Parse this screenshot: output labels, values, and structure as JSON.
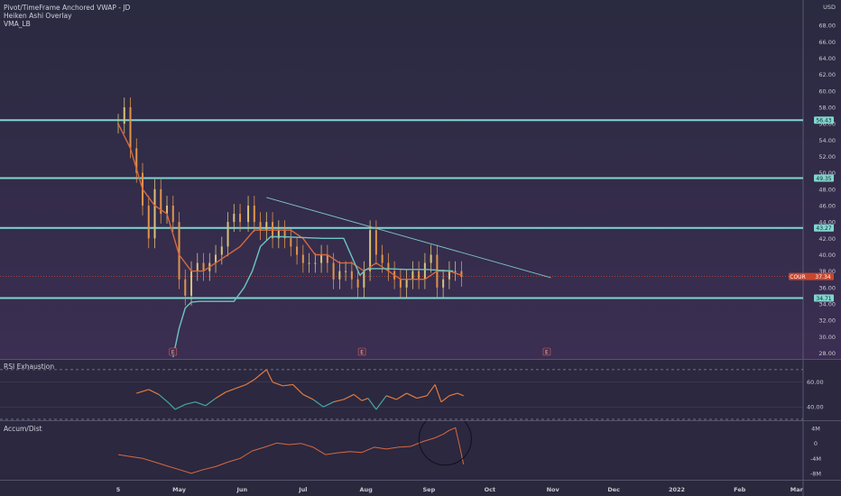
{
  "legend": {
    "indicator_1": "Pivot/TimeFrame Anchored VWAP - JD",
    "indicator_2": "Heiken Ashi Overlay",
    "indicator_3": "VMA_LB",
    "currency": "USD"
  },
  "rsi_pane": {
    "title": "RSI Exhaustion",
    "ticks": [
      "60.00",
      "40.00"
    ]
  },
  "ad_pane": {
    "title": "Accum/Dist",
    "ticks": [
      "4M",
      "0",
      "-4M",
      "-8M"
    ]
  },
  "colors": {
    "level_line": "#7fd6d0",
    "trend_line": "#7fc5c5",
    "candle": "#e0944a",
    "candle_alt": "#d6c27a",
    "vma": "#d8683e",
    "vwap": "#6cc5c0",
    "rsi": "#e27a3c",
    "rsi_low": "#45a8a4",
    "ad": "#d8683e",
    "price_tag": "#c9462f"
  },
  "chart_data": [
    {
      "type": "line",
      "title": "",
      "ylabel": "USD",
      "ylim": [
        27.5,
        70
      ],
      "x_labels": [
        "5",
        "May",
        "Jun",
        "Jul",
        "Aug",
        "Sep",
        "Oct",
        "Nov",
        "Dec",
        "2022",
        "Feb",
        "Mar"
      ],
      "y_ticks": [
        28,
        30,
        32,
        34,
        36,
        38,
        40,
        42,
        44,
        46,
        48,
        50,
        52,
        54,
        56,
        58,
        60,
        62,
        64,
        66,
        68
      ],
      "horizontal_levels": [
        {
          "label": "56.43",
          "value": 56.43
        },
        {
          "label": "49.35",
          "value": 49.35
        },
        {
          "label": "43.27",
          "value": 43.27
        },
        {
          "label": "34.71",
          "value": 34.71
        }
      ],
      "last_price": {
        "symbol": "COUR",
        "label": "37.34",
        "value": 37.34
      },
      "trendline": {
        "from": {
          "x": "Jun 12",
          "y": 47
        },
        "to": {
          "x": "Oct 30",
          "y": 37.2
        }
      },
      "event_markers": [
        {
          "x": "Apr 27",
          "label": "E"
        },
        {
          "x": "Jul 29",
          "label": "E"
        },
        {
          "x": "Oct 28",
          "label": "E"
        }
      ],
      "series": [
        {
          "name": "Price",
          "x": [
            "Mar 31",
            "Apr 3",
            "Apr 6",
            "Apr 9",
            "Apr 12",
            "Apr 15",
            "Apr 18",
            "Apr 21",
            "Apr 24",
            "Apr 27",
            "Apr 30",
            "May 3",
            "May 6",
            "May 9",
            "May 12",
            "May 15",
            "May 18",
            "May 21",
            "May 24",
            "May 27",
            "May 30",
            "Jun 3",
            "Jun 6",
            "Jun 9",
            "Jun 12",
            "Jun 15",
            "Jun 18",
            "Jun 21",
            "Jun 24",
            "Jun 27",
            "Jun 30",
            "Jul 3",
            "Jul 6",
            "Jul 9",
            "Jul 12",
            "Jul 15",
            "Jul 18",
            "Jul 21",
            "Jul 24",
            "Jul 27",
            "Jul 30",
            "Aug 2",
            "Aug 5",
            "Aug 8",
            "Aug 11",
            "Aug 14",
            "Aug 17",
            "Aug 20",
            "Aug 23",
            "Aug 26",
            "Aug 29",
            "Sep 1",
            "Sep 4",
            "Sep 7",
            "Sep 10",
            "Sep 13",
            "Sep 16"
          ],
          "values": [
            56,
            58,
            53,
            50,
            46,
            42,
            48,
            45,
            46,
            44,
            37,
            35,
            38,
            39,
            38,
            39,
            40,
            41,
            44,
            45,
            44,
            46,
            44,
            43,
            44,
            42,
            43,
            42,
            41,
            40,
            39,
            39,
            39,
            40,
            39,
            37,
            38,
            38,
            37,
            36,
            38,
            43,
            40,
            39,
            38,
            37,
            36,
            37,
            38,
            37,
            39,
            40,
            36,
            37,
            38,
            38,
            37.3
          ]
        },
        {
          "name": "VMA",
          "x": [
            "Mar 31",
            "Apr 6",
            "Apr 12",
            "Apr 18",
            "Apr 24",
            "Apr 30",
            "May 6",
            "May 12",
            "May 18",
            "May 24",
            "May 30",
            "Jun 6",
            "Jun 12",
            "Jun 18",
            "Jun 24",
            "Jun 30",
            "Jul 6",
            "Jul 12",
            "Jul 18",
            "Jul 24",
            "Jul 30",
            "Aug 5",
            "Aug 11",
            "Aug 17",
            "Aug 23",
            "Aug 29",
            "Sep 4",
            "Sep 10",
            "Sep 16"
          ],
          "values": [
            56,
            53,
            48,
            46,
            45,
            40,
            38,
            38,
            39,
            40,
            41,
            43,
            43,
            43,
            43,
            42,
            40,
            40,
            39,
            39,
            38,
            39,
            38,
            37,
            37,
            37,
            38,
            38,
            37.5
          ]
        },
        {
          "name": "VWAP",
          "x": [
            "Apr 27",
            "Apr 30",
            "May 3",
            "May 6",
            "May 10",
            "May 18",
            "May 27",
            "Jun 1",
            "Jun 5",
            "Jun 9",
            "Jun 14",
            "Jun 20",
            "Jun 30",
            "Jul 10",
            "Jul 20",
            "Jul 28",
            "Jul 31",
            "Aug 3",
            "Aug 10",
            "Aug 20",
            "Aug 30",
            "Sep 5",
            "Sep 12"
          ],
          "values": [
            27.5,
            31,
            33.5,
            34.2,
            34.3,
            34.3,
            34.3,
            36,
            38,
            41,
            42.2,
            42.2,
            42.1,
            42,
            42,
            37.5,
            38.2,
            38.3,
            38.3,
            38.2,
            38.2,
            38.1,
            38
          ]
        }
      ]
    },
    {
      "type": "line",
      "title": "RSI Exhaustion",
      "ylim": [
        30,
        75
      ],
      "x": [
        "Apr 9",
        "Apr 15",
        "Apr 20",
        "Apr 25",
        "Apr 28",
        "May 3",
        "May 8",
        "May 13",
        "May 18",
        "May 23",
        "May 28",
        "Jun 2",
        "Jun 6",
        "Jun 9",
        "Jun 12",
        "Jun 15",
        "Jun 20",
        "Jun 25",
        "Jun 30",
        "Jul 5",
        "Jul 10",
        "Jul 15",
        "Jul 20",
        "Jul 25",
        "Jul 29",
        "Aug 1",
        "Aug 5",
        "Aug 10",
        "Aug 15",
        "Aug 20",
        "Aug 25",
        "Aug 30",
        "Sep 3",
        "Sep 6",
        "Sep 10",
        "Sep 14",
        "Sep 17"
      ],
      "values": [
        51,
        54,
        50,
        43,
        38,
        42,
        44,
        41,
        47,
        52,
        55,
        58,
        62,
        66,
        70,
        60,
        57,
        58,
        50,
        46,
        40,
        44,
        46,
        50,
        45,
        47,
        38,
        49,
        46,
        51,
        47,
        49,
        58,
        44,
        49,
        51,
        49
      ]
    },
    {
      "type": "line",
      "title": "Accum/Dist",
      "ylim": [
        -9,
        5
      ],
      "x": [
        "Mar 31",
        "Apr 6",
        "Apr 12",
        "Apr 18",
        "Apr 24",
        "Apr 30",
        "May 6",
        "May 12",
        "May 18",
        "May 24",
        "May 30",
        "Jun 5",
        "Jun 11",
        "Jun 17",
        "Jun 23",
        "Jun 29",
        "Jul 5",
        "Jul 11",
        "Jul 17",
        "Jul 23",
        "Jul 29",
        "Aug 4",
        "Aug 10",
        "Aug 16",
        "Aug 22",
        "Aug 28",
        "Sep 3",
        "Sep 7",
        "Sep 10",
        "Sep 13",
        "Sep 15",
        "Sep 17"
      ],
      "values": [
        -3,
        -3.5,
        -4,
        -5,
        -6,
        -7,
        -8,
        -7,
        -6.2,
        -5,
        -4,
        -2,
        -1,
        0.1,
        -0.3,
        0,
        -1,
        -3,
        -2.5,
        -2.2,
        -2.4,
        -1,
        -1.5,
        -1,
        -0.8,
        0.5,
        1.5,
        2.5,
        3.5,
        4.2,
        -0.5,
        -5.6
      ]
    }
  ]
}
